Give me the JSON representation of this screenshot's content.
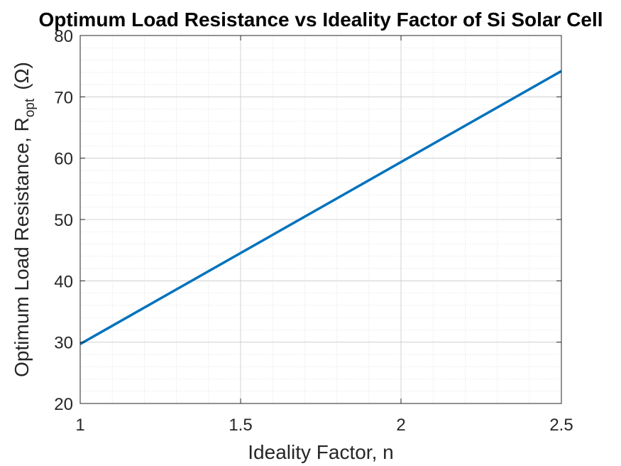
{
  "chart_data": {
    "type": "line",
    "title": "Optimum Load Resistance vs Ideality Factor of Si Solar Cell",
    "xlabel": "Ideality Factor, n",
    "ylabel_main": "Optimum Load Resistance, R",
    "ylabel_sub": "opt",
    "ylabel_unit": "(Ω)",
    "xlim": [
      1,
      2.5
    ],
    "ylim": [
      20,
      80
    ],
    "xticks": [
      1,
      1.5,
      2,
      2.5
    ],
    "xtick_labels": [
      "1",
      "1.5",
      "2",
      "2.5"
    ],
    "yticks": [
      20,
      30,
      40,
      50,
      60,
      70,
      80
    ],
    "ytick_labels": [
      "20",
      "30",
      "40",
      "50",
      "60",
      "70",
      "80"
    ],
    "grid": true,
    "minor_grid": true,
    "series": [
      {
        "color": "#0072BD",
        "x": [
          1,
          2.5
        ],
        "y": [
          29.7,
          74.2
        ]
      }
    ]
  }
}
